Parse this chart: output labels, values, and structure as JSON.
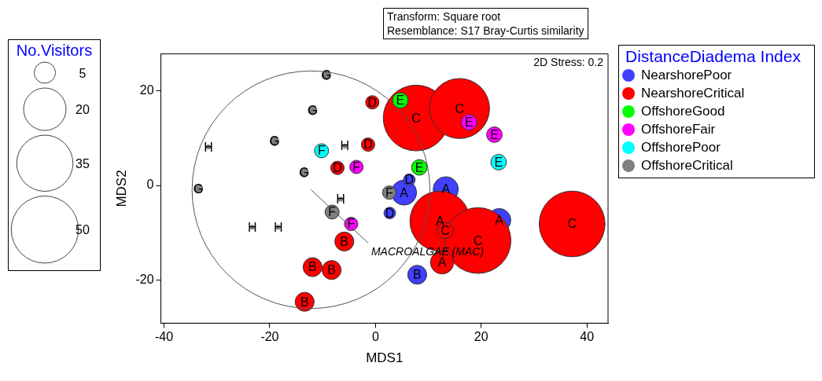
{
  "chart_data": {
    "type": "bubble",
    "xlabel": "MDS1",
    "ylabel": "MDS2",
    "legend_title": "DistanceDiadema Index",
    "legend": "right",
    "grid": false,
    "marker": "circle",
    "xlim": [
      -40.6,
      44
    ],
    "xticks": [
      -40,
      -20,
      0,
      20,
      40
    ],
    "ylim": [
      -29,
      27.7
    ],
    "yticks": [
      -20,
      0,
      20
    ],
    "size_legend": [
      5,
      20,
      35,
      50
    ],
    "annotations": [
      "No.Visitors",
      "Transform: Square root",
      "Resemblance: S17 Bray-Curtis similarity",
      "2D Stress: 0.2",
      "MACROALGAE (MAC)"
    ],
    "series": [
      {
        "name": "NearshorePoor",
        "color": "#4040ff",
        "x": [
          5.4,
          13.3,
          23.4,
          6.4,
          2.7,
          7.9
        ],
        "values": [
          -1.5,
          -0.8,
          -7.3,
          1.2,
          -5.8,
          -18.8
        ],
        "sizes": [
          7,
          7,
          6,
          1.5,
          1.5,
          4
        ],
        "value_labels": [
          "A",
          "A",
          "A",
          "D",
          "D",
          "B"
        ]
      },
      {
        "name": "NearshoreCritical",
        "color": "#ff0000",
        "x": [
          7.7,
          15.9,
          12.2,
          19.4,
          37.2,
          13.2,
          12.6,
          -0.6,
          -1.4,
          -7.2,
          -5.9,
          -11.9,
          -8.3,
          -13.4
        ],
        "values": [
          14.2,
          16.2,
          -7.5,
          -11.6,
          -8.1,
          -9.5,
          -16.2,
          17.5,
          8.6,
          3.7,
          -11.8,
          -17.2,
          -17.8,
          -24.5
        ],
        "sizes": [
          48,
          40,
          40,
          48,
          48,
          3,
          6,
          2,
          2,
          2,
          4,
          4,
          4,
          4
        ],
        "value_labels": [
          "C",
          "C",
          "A",
          "C",
          "C",
          "C",
          "A",
          "D",
          "D",
          "D",
          "B",
          "B",
          "B",
          "B"
        ]
      },
      {
        "name": "OffshoreGood",
        "color": "#00ff00",
        "x": [
          4.7,
          8.3
        ],
        "values": [
          17.9,
          3.8
        ],
        "sizes": [
          2.7,
          2.7
        ],
        "value_labels": [
          "E",
          "E"
        ]
      },
      {
        "name": "OffshoreFair",
        "color": "#ff00ff",
        "x": [
          17.7,
          22.5,
          -3.6,
          -4.6
        ],
        "values": [
          13.3,
          10.7,
          3.9,
          -8.1
        ],
        "sizes": [
          2.7,
          2.7,
          2,
          2
        ],
        "value_labels": [
          "E",
          "E",
          "F",
          "F"
        ]
      },
      {
        "name": "OffshorePoor",
        "color": "#00ffff",
        "x": [
          23.3,
          -10.2
        ],
        "values": [
          4.9,
          7.3
        ],
        "sizes": [
          2.7,
          2.2
        ],
        "value_labels": [
          "E",
          "F"
        ]
      },
      {
        "name": "OffshoreCritical",
        "color": "#808080",
        "x": [
          2.6,
          -8.2,
          -9.3,
          -11.9,
          -19.1,
          -13.5,
          -33.5,
          -31.6,
          -5.8,
          -6.6,
          -23.3,
          -18.4
        ],
        "values": [
          -1.5,
          -5.6,
          23.2,
          15.8,
          9.3,
          2.7,
          -0.7,
          8.1,
          8.3,
          -2.9,
          -8.8,
          -8.8
        ],
        "sizes": [
          2,
          2.2,
          0.8,
          0.8,
          0.8,
          0.8,
          0.8,
          0.2,
          0.2,
          0.2,
          0.2,
          0.2
        ],
        "value_labels": [
          "F",
          "F",
          "G",
          "G",
          "G",
          "G",
          "G",
          "H",
          "H",
          "H",
          "H",
          "H"
        ]
      }
    ]
  }
}
